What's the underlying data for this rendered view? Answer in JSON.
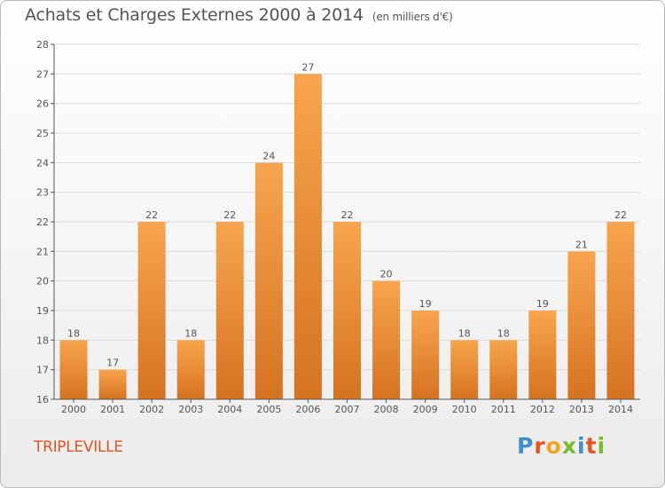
{
  "title": "Achats et Charges Externes 2000 à 2014",
  "unit": "(en milliers d'€)",
  "town": "TRIPLEVILLE",
  "logo": [
    "P",
    "r",
    "o",
    "x",
    "i",
    "t",
    "i"
  ],
  "colors": {
    "bar_light": "#f7a54e",
    "bar_dark": "#d67220",
    "axis": "#555555",
    "grid": "#dcdcdc",
    "text": "#555555",
    "town": "#e8531f"
  },
  "chart_data": {
    "type": "bar",
    "categories": [
      "2000",
      "2001",
      "2002",
      "2003",
      "2004",
      "2005",
      "2006",
      "2007",
      "2008",
      "2009",
      "2010",
      "2011",
      "2012",
      "2013",
      "2014"
    ],
    "values": [
      18,
      17,
      22,
      18,
      22,
      24,
      27,
      22,
      20,
      19,
      18,
      18,
      19,
      21,
      22
    ],
    "data_labels": [
      "18",
      "17",
      "22",
      "18",
      "22",
      "24",
      "27",
      "22",
      "20",
      "19",
      "18",
      "18",
      "19",
      "21",
      "22"
    ],
    "ylim": [
      16,
      28
    ],
    "yticks": [
      16,
      17,
      18,
      19,
      20,
      21,
      22,
      23,
      24,
      25,
      26,
      27,
      28
    ],
    "title": "Achats et Charges Externes 2000 à 2014",
    "xlabel": "",
    "ylabel": "",
    "grid": true
  }
}
